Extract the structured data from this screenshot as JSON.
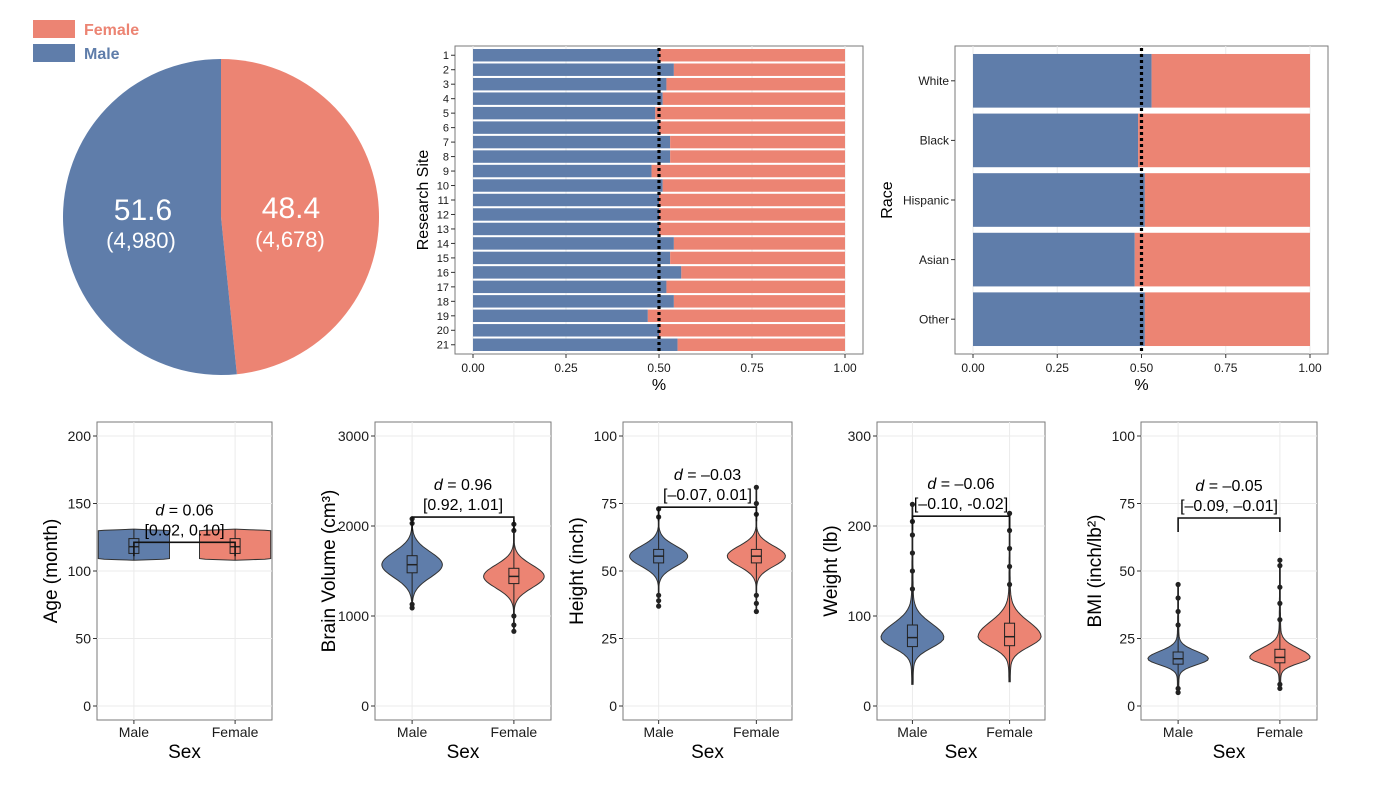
{
  "colors": {
    "male": "#5F7DAA",
    "female": "#EC8473",
    "panel_border": "#7a7a7a",
    "grid": "#ebebeb"
  },
  "legend": [
    {
      "label": "Female",
      "color": "#EC8473"
    },
    {
      "label": "Male",
      "color": "#5F7DAA"
    }
  ],
  "chart_data": [
    {
      "type": "pie",
      "title": "",
      "slices": [
        {
          "name": "Male",
          "percent": "51.6",
          "count": "(4,980)",
          "value": 51.6
        },
        {
          "name": "Female",
          "percent": "48.4",
          "count": "(4,678)",
          "value": 48.4
        }
      ]
    },
    {
      "type": "bar",
      "orientation": "horizontal",
      "stacked": true,
      "ylabel": "Research Site",
      "xlabel": "%",
      "xlim": [
        0,
        1
      ],
      "xticks": [
        "0.00",
        "0.25",
        "0.50",
        "0.75",
        "1.00"
      ],
      "reference_line": 0.5,
      "categories": [
        "1",
        "2",
        "3",
        "4",
        "5",
        "6",
        "7",
        "8",
        "9",
        "10",
        "11",
        "12",
        "13",
        "14",
        "15",
        "16",
        "17",
        "18",
        "19",
        "20",
        "21"
      ],
      "male_fraction": [
        0.5,
        0.54,
        0.52,
        0.51,
        0.49,
        0.5,
        0.53,
        0.53,
        0.48,
        0.51,
        0.5,
        0.5,
        0.5,
        0.54,
        0.53,
        0.56,
        0.52,
        0.54,
        0.47,
        0.5,
        0.55
      ]
    },
    {
      "type": "bar",
      "orientation": "horizontal",
      "stacked": true,
      "ylabel": "Race",
      "xlabel": "%",
      "xlim": [
        0,
        1
      ],
      "xticks": [
        "0.00",
        "0.25",
        "0.50",
        "0.75",
        "1.00"
      ],
      "reference_line": 0.5,
      "categories": [
        "White",
        "Black",
        "Hispanic",
        "Asian",
        "Other"
      ],
      "male_fraction": [
        0.53,
        0.49,
        0.51,
        0.48,
        0.51
      ]
    },
    {
      "type": "violin",
      "xlabel": "Sex",
      "ylabel": "Age (month)",
      "ylim": [
        0,
        200
      ],
      "yticks": [
        0,
        50,
        100,
        150,
        200
      ],
      "categories": [
        "Male",
        "Female"
      ],
      "annotation": {
        "prefix": "d",
        "value": " = 0.06",
        "ci": "[0.02, 0.10]"
      },
      "annotation_y": 142,
      "groups": [
        {
          "name": "Male",
          "min": 108,
          "q1": 113,
          "median": 118,
          "q3": 124,
          "max": 131,
          "kind": "uniform",
          "width": 0.65,
          "outliers": []
        },
        {
          "name": "Female",
          "min": 108,
          "q1": 113,
          "median": 118,
          "q3": 124,
          "max": 131,
          "kind": "uniform",
          "width": 0.65,
          "outliers": []
        }
      ]
    },
    {
      "type": "violin",
      "xlabel": "Sex",
      "ylabel": "Brain Volume (cm³)",
      "ylim": [
        0,
        3000
      ],
      "yticks": [
        0,
        1000,
        2000,
        3000
      ],
      "categories": [
        "Male",
        "Female"
      ],
      "annotation": {
        "prefix": "d",
        "value": " = 0.96",
        "ci": "[0.92, 1.01]"
      },
      "annotation_y": 2410,
      "groups": [
        {
          "name": "Male",
          "min": 1070,
          "q1": 1480,
          "median": 1570,
          "q3": 1670,
          "max": 2100,
          "kind": "normal",
          "width": 0.55,
          "outliers": [
            1090,
            1130,
            2030,
            2080
          ]
        },
        {
          "name": "Female",
          "min": 830,
          "q1": 1360,
          "median": 1440,
          "q3": 1530,
          "max": 2060,
          "kind": "normal",
          "width": 0.55,
          "outliers": [
            830,
            900,
            1000,
            1950,
            2020
          ]
        }
      ]
    },
    {
      "type": "violin",
      "xlabel": "Sex",
      "ylabel": "Height (inch)",
      "ylim": [
        0,
        100
      ],
      "yticks": [
        0,
        25,
        50,
        75,
        100
      ],
      "categories": [
        "Male",
        "Female"
      ],
      "annotation": {
        "prefix": "d",
        "value": " = –0.03",
        "ci": "[–0.07, 0.01]"
      },
      "annotation_y": 84,
      "groups": [
        {
          "name": "Male",
          "min": 37,
          "q1": 53,
          "median": 55.5,
          "q3": 58,
          "max": 73,
          "kind": "normal",
          "width": 0.55,
          "outliers": [
            37,
            39,
            41,
            70,
            73
          ]
        },
        {
          "name": "Female",
          "min": 35,
          "q1": 53,
          "median": 55.5,
          "q3": 58,
          "max": 81,
          "kind": "normal",
          "width": 0.55,
          "outliers": [
            35,
            38,
            41,
            71,
            75,
            81
          ]
        }
      ]
    },
    {
      "type": "violin",
      "xlabel": "Sex",
      "ylabel": "Weight (lb)",
      "ylim": [
        0,
        300
      ],
      "yticks": [
        0,
        100,
        200,
        300
      ],
      "categories": [
        "Male",
        "Female"
      ],
      "annotation": {
        "prefix": "d",
        "value": " = –0.06",
        "ci": "[–0.10, -0.02]"
      },
      "annotation_y": 242,
      "groups": [
        {
          "name": "Male",
          "min": 24,
          "q1": 66,
          "median": 76,
          "q3": 90,
          "max": 224,
          "kind": "skew",
          "width": 0.6,
          "outliers": [
            130,
            150,
            170,
            190,
            205,
            224
          ]
        },
        {
          "name": "Female",
          "min": 27,
          "q1": 67,
          "median": 77,
          "q3": 92,
          "max": 214,
          "kind": "skew",
          "width": 0.6,
          "outliers": [
            135,
            155,
            175,
            195,
            214
          ]
        }
      ]
    },
    {
      "type": "violin",
      "xlabel": "Sex",
      "ylabel": "BMI (inch/lb²)",
      "ylim": [
        0,
        100
      ],
      "yticks": [
        0,
        25,
        50,
        75,
        100
      ],
      "categories": [
        "Male",
        "Female"
      ],
      "annotation": {
        "prefix": "d",
        "value": " = –0.05",
        "ci": "[–0.09, –0.01]"
      },
      "annotation_y": 80,
      "groups": [
        {
          "name": "Male",
          "min": 5,
          "q1": 15.5,
          "median": 17.5,
          "q3": 20,
          "max": 45,
          "kind": "skew",
          "width": 0.55,
          "outliers": [
            5,
            6.5,
            30,
            35,
            40,
            45
          ]
        },
        {
          "name": "Female",
          "min": 6.5,
          "q1": 16,
          "median": 18,
          "q3": 21,
          "max": 54,
          "kind": "skew",
          "width": 0.55,
          "outliers": [
            6.5,
            8,
            32,
            38,
            44,
            52,
            54
          ]
        }
      ]
    }
  ]
}
